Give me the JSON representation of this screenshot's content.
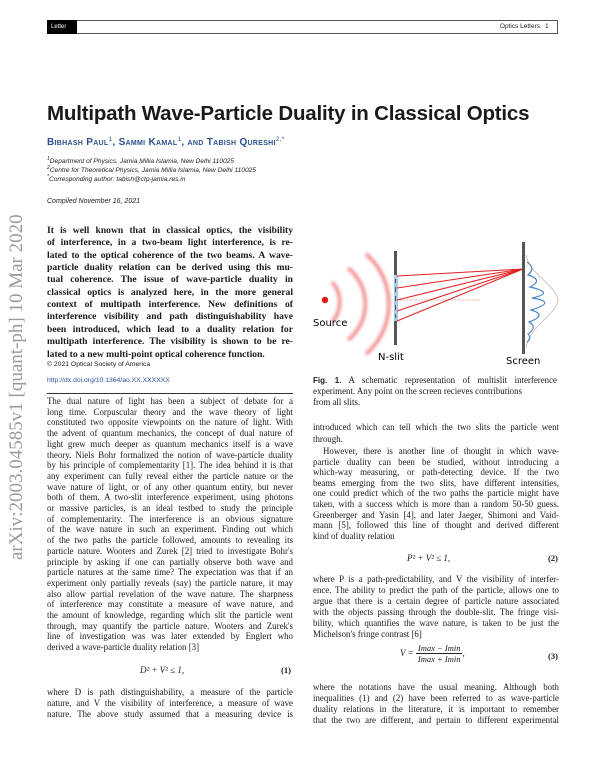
{
  "header": {
    "tag": "Letter",
    "journal": "Optics Letters",
    "page": "1"
  },
  "side_stamp": "arXiv:2003.04585v1  [quant-ph]  10 Mar 2020",
  "title": "Multipath Wave-Particle Duality in Classical Optics",
  "authors": [
    {
      "name": "Bibhash Paul",
      "sup": "1",
      "sep": ", "
    },
    {
      "name": "Sammi Kamal",
      "sup": "1",
      "sep": ", and "
    },
    {
      "name": "Tabish Qureshi",
      "sup": "2,*",
      "sep": ""
    }
  ],
  "affiliations": [
    {
      "mark": "1",
      "text": "Department of Physics, Jamia Millia Islamia, New Delhi 110025"
    },
    {
      "mark": "2",
      "text": "Centre for Theoretical Physics, Jamia Millia Islamia, New Delhi 110025"
    },
    {
      "mark": "*",
      "text": "Corresponding author: tabish@ctp-jamia.res.in"
    }
  ],
  "compiled": "Compiled November 16, 2021",
  "abstract": [
    "It is well known that in classical optics, the visibility",
    "of interference, in a two-beam light interference, is re-",
    "lated to the optical coherence of the two beams. A wave-",
    "particle duality relation can be derived using this mu-",
    "tual coherence. The issue of wave-particle duality in",
    "classical optics is analyzed here, in the more general",
    "context of multipath interference. New definitions of",
    "interference visibility and path distinguishability have",
    "been introduced, which lead to a duality relation for",
    "multipath interference. The visibility is shown to be re-",
    "lated to a new multi-point optical coherence function."
  ],
  "copyright": "© 2021 Optical Society of America",
  "doi": "http://dx.doi.org/10.1364/ao.XX.XXXXXX",
  "figure": {
    "labels": {
      "source": "Source",
      "nslit": "N-slit",
      "screen": "Screen"
    },
    "caption_label": "Fig. 1.",
    "caption": [
      "A schematic representation of multislit interference",
      "experiment. Any point on the screen recieves contributions",
      "from all slits."
    ],
    "colors": {
      "rays": "#e02020",
      "pattern": "#4a86c8",
      "slits": "#555555"
    }
  },
  "left_column": {
    "p1": [
      "The dual nature of light has been a subject of debate for a",
      "long time. Corpuscular theory and the wave theory of light",
      "constituted two opposite viewpoints on the nature of light. With",
      "the advent of quantum mechanics, the concept of dual nature of",
      "light grew much deeper as quantum mechanics itself is a wave",
      "theory. Niels Bohr formalized the notion of wave-particle duality",
      "by his principle of complementarity [1]. The idea behind it is that",
      "any experiment can fully reveal either the particle nature or the",
      "wave nature of light, or of any other quantum entity, but never",
      "both of them. A two-slit interference experiment, using photons",
      "or massive particles, is an ideal testbed to study the principle",
      "of complementarity. The interference is an obvious signature",
      "of the wave nature in such an experiment. Finding out which",
      "of the two paths the particle followed, amounts to revealing its",
      "particle nature. Wooters and Zurek [2] tried to investigate Bohr's",
      "principle by asking if one can partially observe both wave and",
      "particle natures at the same time? The expectation was that if an",
      "experiment only partially reveals (say) the particle nature, it may",
      "also allow partial revelation of the wave nature. The sharpness",
      "of interference may constitute a measure of wave nature, and",
      "the amount of knowledge, regarding which slit the particle went",
      "through, may quantify the particle nature. Wooters and Zurek's",
      "line of investigation was was later extended by Englert who",
      "derived a wave-particle duality relation [3]"
    ],
    "eq1": {
      "expr": "D² + V² ≤ 1,",
      "number": "(1)"
    },
    "p2": [
      "where D is path distinguishability, a measure of the particle",
      "nature, and V the visibility of interference, a measure of wave",
      "nature. The above study assumed that a measuring device is"
    ]
  },
  "right_column": {
    "p1": [
      "introduced which can tell which the two slits the particle went",
      "through."
    ],
    "p2": [
      "However, there is another line of thought in which wave-",
      "particle duality can been be studied, without introducing a",
      "which-way measuring, or path-detecting device. If the two",
      "beams emerging from the two slits, have different intensities,",
      "one could predict which of the two paths the particle might have",
      "taken, with a success which is more than a random 50-50 guess.",
      "Greenberger and Yasin [4], and later Jaeger, Shimoni and Vaid-",
      "mann [5], followed this line of thought and derived different",
      "kind of duality relation"
    ],
    "eq2": {
      "expr": "P² + V² ≤ 1,",
      "number": "(2)"
    },
    "p3": [
      "where P is a path-predictability, and V the visibility of interfer-",
      "ence. The ability to predict the path of the particle, allows one to",
      "argue that there is a certain degree of particle nature associated",
      "with the objects passing through the double-slit. The fringe visi-",
      "bility, which quantifies the wave nature, is taken to be just the",
      "Michelson's fringe contrast [6]"
    ],
    "eq3": {
      "lhs": "V =",
      "numerator": "Imax − Imin",
      "denominator": "Imax + Imin",
      "tail": ",",
      "number": "(3)"
    },
    "p4": [
      "where the notations have the usual meaning. Although both",
      "inequalities (1) and (2) have been referred to as wave-particle",
      "duality relations in the literature, it is important to remember",
      "that the two are different, and pertain to different experimental"
    ]
  }
}
